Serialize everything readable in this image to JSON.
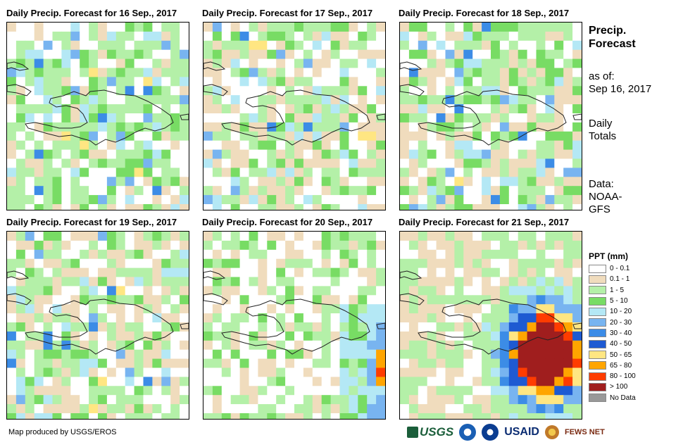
{
  "panels": [
    {
      "title": "Daily Precip. Forecast for 16 Sep., 2017",
      "scenario": "scattered-light"
    },
    {
      "title": "Daily Precip. Forecast for 17 Sep., 2017",
      "scenario": "mostly-dry-east"
    },
    {
      "title": "Daily Precip. Forecast for 18 Sep., 2017",
      "scenario": "light-north"
    },
    {
      "title": "Daily Precip. Forecast for 19 Sep., 2017",
      "scenario": "light-mixed"
    },
    {
      "title": "Daily Precip. Forecast for 20 Sep., 2017",
      "scenario": "rain-approaching-southeast"
    },
    {
      "title": "Daily Precip. Forecast for 21 Sep., 2017",
      "scenario": "heavy-rain-hispaniola"
    }
  ],
  "side": {
    "title_line1": "Precip.",
    "title_line2": "Forecast",
    "asof_label": "as of:",
    "asof_date": "Sep 16, 2017",
    "daily_line1": "Daily",
    "daily_line2": "Totals",
    "data_line1": "Data:",
    "data_line2": "NOAA-",
    "data_line3": "GFS"
  },
  "legend": {
    "title": "PPT (mm)",
    "items": [
      {
        "label": "0 - 0.1",
        "color": "#ffffff"
      },
      {
        "label": "0.1 - 1",
        "color": "#f0dcbd"
      },
      {
        "label": "1 - 5",
        "color": "#b4f0a8"
      },
      {
        "label": "5 - 10",
        "color": "#78dc64"
      },
      {
        "label": "10 - 20",
        "color": "#b4e8f5"
      },
      {
        "label": "20 - 30",
        "color": "#78b4f0"
      },
      {
        "label": "30 - 40",
        "color": "#3c8ce6"
      },
      {
        "label": "40 - 50",
        "color": "#1e5ad2"
      },
      {
        "label": "50 - 65",
        "color": "#ffe682"
      },
      {
        "label": "65 - 80",
        "color": "#ffa500"
      },
      {
        "label": "80 - 100",
        "color": "#ff3c00"
      },
      {
        "label": "> 100",
        "color": "#a01e1e"
      },
      {
        "label": "No Data",
        "color": "#999999"
      }
    ]
  },
  "credit": "Map produced by USGS/EROS",
  "logos": {
    "usgs": "USGS",
    "usaid": "USAID",
    "fews": "FEWS NET"
  }
}
